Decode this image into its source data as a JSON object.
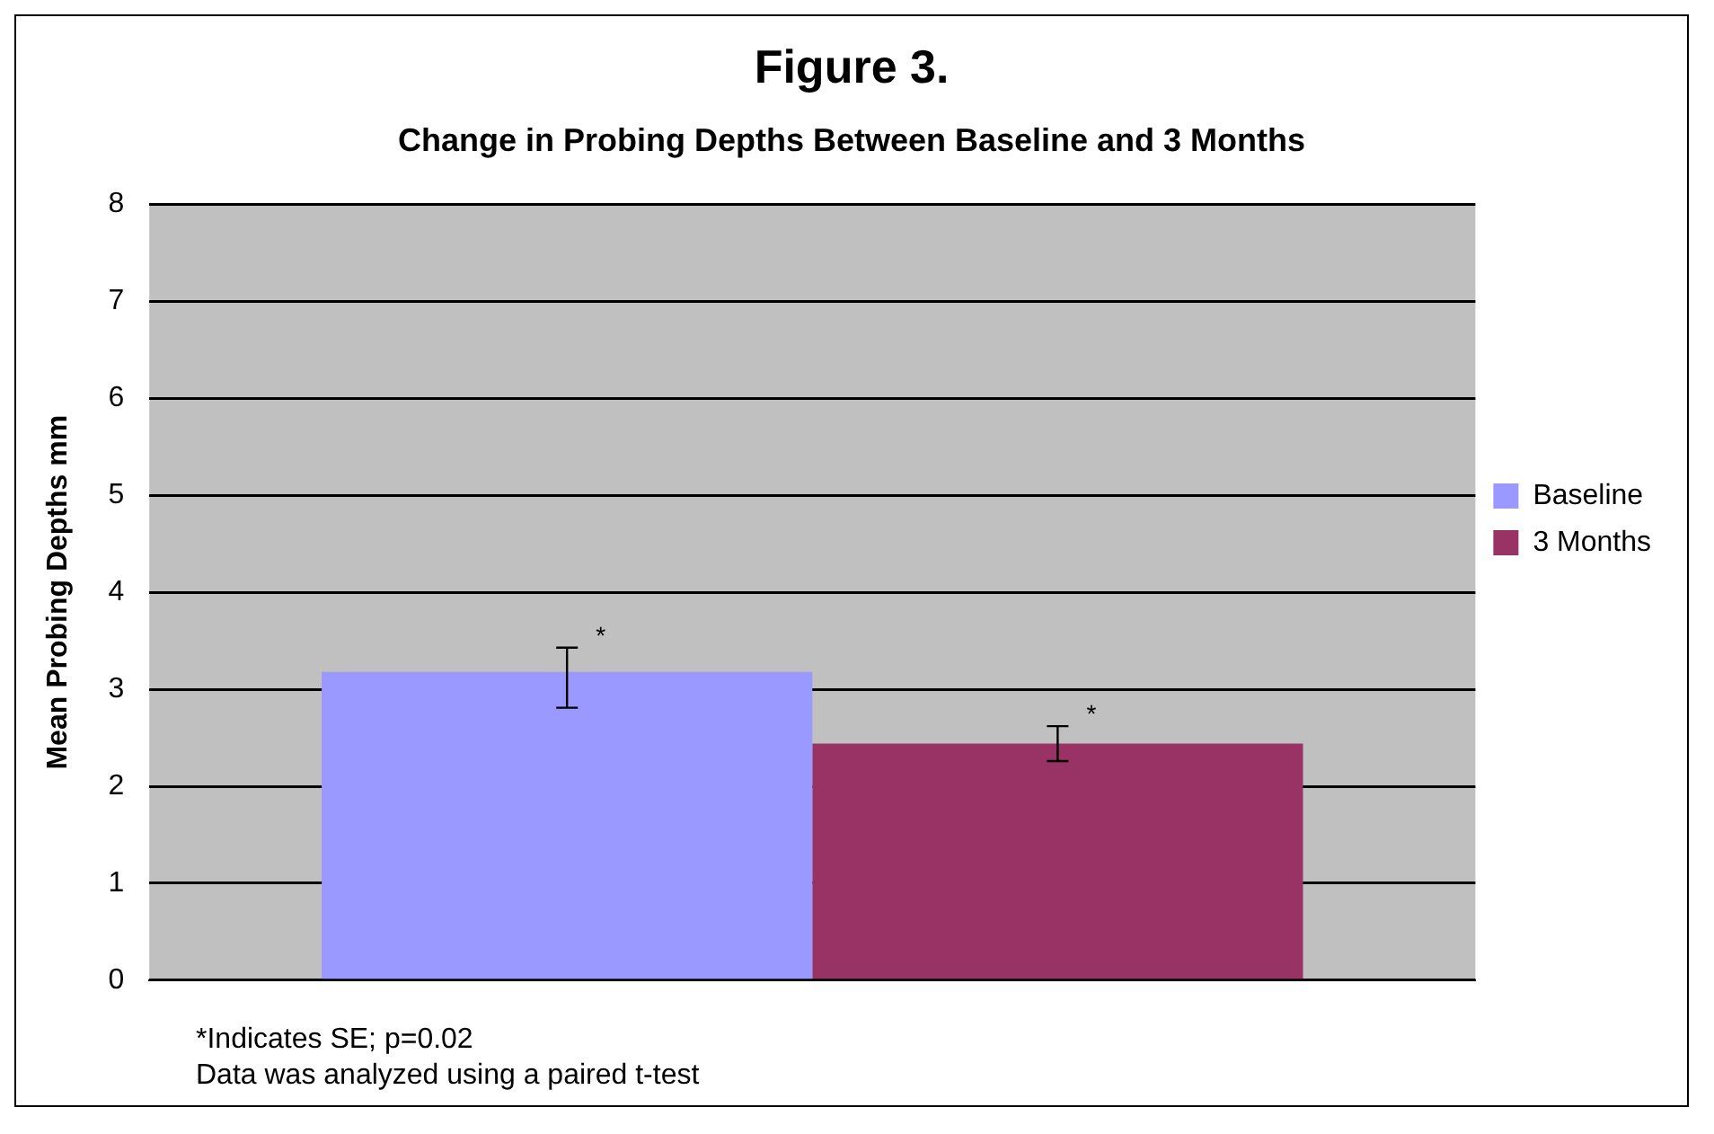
{
  "chart_data": {
    "type": "bar",
    "title": "Figure 3.",
    "subtitle": "Change in Probing Depths Between Baseline and 3 Months",
    "ylabel": "Mean Probing Depths mm",
    "categories": [
      null
    ],
    "series": [
      {
        "name": "Baseline",
        "color": "#9999ff",
        "values": [
          3.18
        ],
        "errors": [
          [
            2.81,
            3.43
          ]
        ],
        "value_labels": [
          "*"
        ]
      },
      {
        "name": "3 Months",
        "color": "#993366",
        "values": [
          2.44
        ],
        "errors": [
          [
            2.26,
            2.62
          ]
        ],
        "value_labels": [
          "*"
        ]
      }
    ],
    "ylim": [
      0,
      8
    ],
    "yticks": [
      0,
      1,
      2,
      3,
      4,
      5,
      6,
      7,
      8
    ],
    "grid": "y",
    "legend": "right",
    "annotations": [
      "*Indicates SE; p=0.02",
      "Data was analyzed using a paired t-test"
    ]
  }
}
